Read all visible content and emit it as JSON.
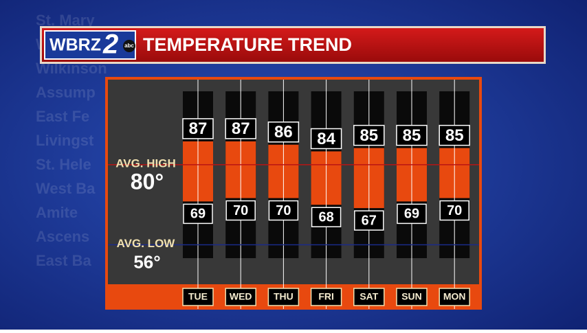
{
  "logo": {
    "station": "WBRZ",
    "channel": "2",
    "network": "abc"
  },
  "background_labels": [
    "St. Mary",
    "W",
    "Wilkinson",
    "Assump",
    "East Fe",
    "Livingst",
    "St. Hele",
    "West Ba",
    "Amite",
    "Ascens",
    "East Ba"
  ],
  "chart_data": {
    "type": "range_bar",
    "title": "TEMPERATURE TREND",
    "categories": [
      "TUE",
      "WED",
      "THU",
      "FRI",
      "SAT",
      "SUN",
      "MON"
    ],
    "series": [
      {
        "name": "High",
        "values": [
          87,
          87,
          86,
          84,
          85,
          85,
          85
        ]
      },
      {
        "name": "Low",
        "values": [
          69,
          70,
          70,
          68,
          67,
          69,
          70
        ]
      }
    ],
    "color": "#e8490f",
    "ylim": [
      52,
      102
    ],
    "avg_high": {
      "label": "AVG. HIGH",
      "value": 80,
      "value_label": "80°",
      "color": "#b81414"
    },
    "avg_low": {
      "label": "AVG. LOW",
      "value": 56,
      "value_label": "56°",
      "color": "#1a2a8a"
    }
  }
}
